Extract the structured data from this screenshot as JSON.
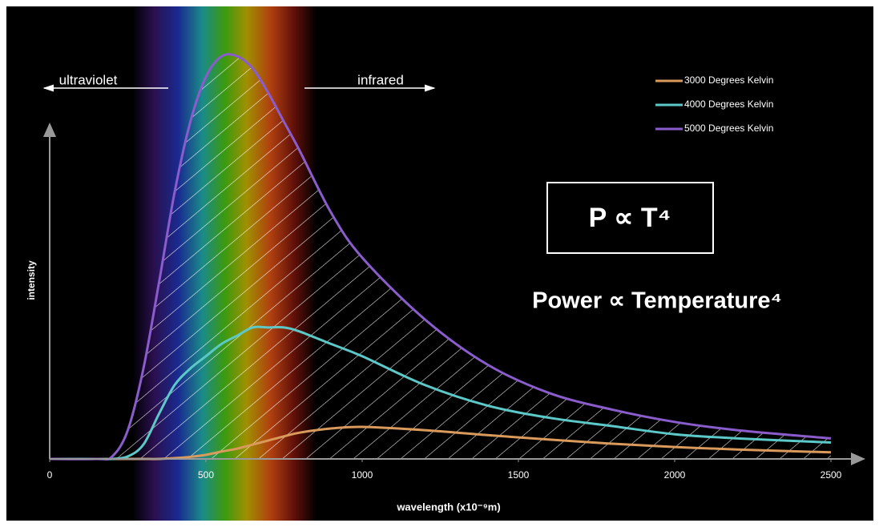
{
  "chart_data": {
    "type": "line",
    "x_label": "wavelength (x10⁻⁹m)",
    "y_label": "intensity",
    "annotations": [
      "ultraviolet",
      "infrared"
    ],
    "formula": "P ∝ T⁴",
    "formula_words": "Power ∝ Temperature⁴",
    "x": [
      0,
      150,
      200,
      250,
      300,
      350,
      400,
      450,
      500,
      550,
      600,
      650,
      700,
      750,
      800,
      900,
      1000,
      1200,
      1400,
      1600,
      1800,
      2000,
      2200,
      2500
    ],
    "series": [
      {
        "name": "3000 Degrees Kelvin",
        "color": "#d99a5b",
        "values": [
          0,
          0,
          0,
          0,
          0,
          0,
          0.2,
          0.5,
          1,
          1.8,
          2.5,
          3.5,
          4.5,
          5.5,
          6.4,
          7.4,
          7.8,
          7,
          5.8,
          4.7,
          3.7,
          2.9,
          2.3,
          1.6
        ]
      },
      {
        "name": "4000 Degrees Kelvin",
        "color": "#5cc8c8",
        "values": [
          0,
          0,
          0,
          0.6,
          3.5,
          11,
          18,
          22,
          25,
          28,
          30,
          32,
          32,
          32,
          31,
          28,
          25,
          18,
          13,
          10,
          8,
          6,
          5,
          4
        ]
      },
      {
        "name": "5000 Degrees Kelvin",
        "color": "#8a5ccc",
        "values": [
          0,
          0,
          0.6,
          7,
          22,
          43,
          65,
          82,
          93,
          98,
          98,
          95,
          89,
          82,
          75,
          60,
          49,
          34,
          23,
          16,
          12,
          9,
          7,
          5
        ]
      }
    ],
    "xlim": [
      0,
      2500
    ],
    "xticks": [
      0,
      500,
      1000,
      1500,
      2000,
      2500
    ],
    "ylim": [
      0,
      100
    ],
    "legend": "top-right"
  }
}
